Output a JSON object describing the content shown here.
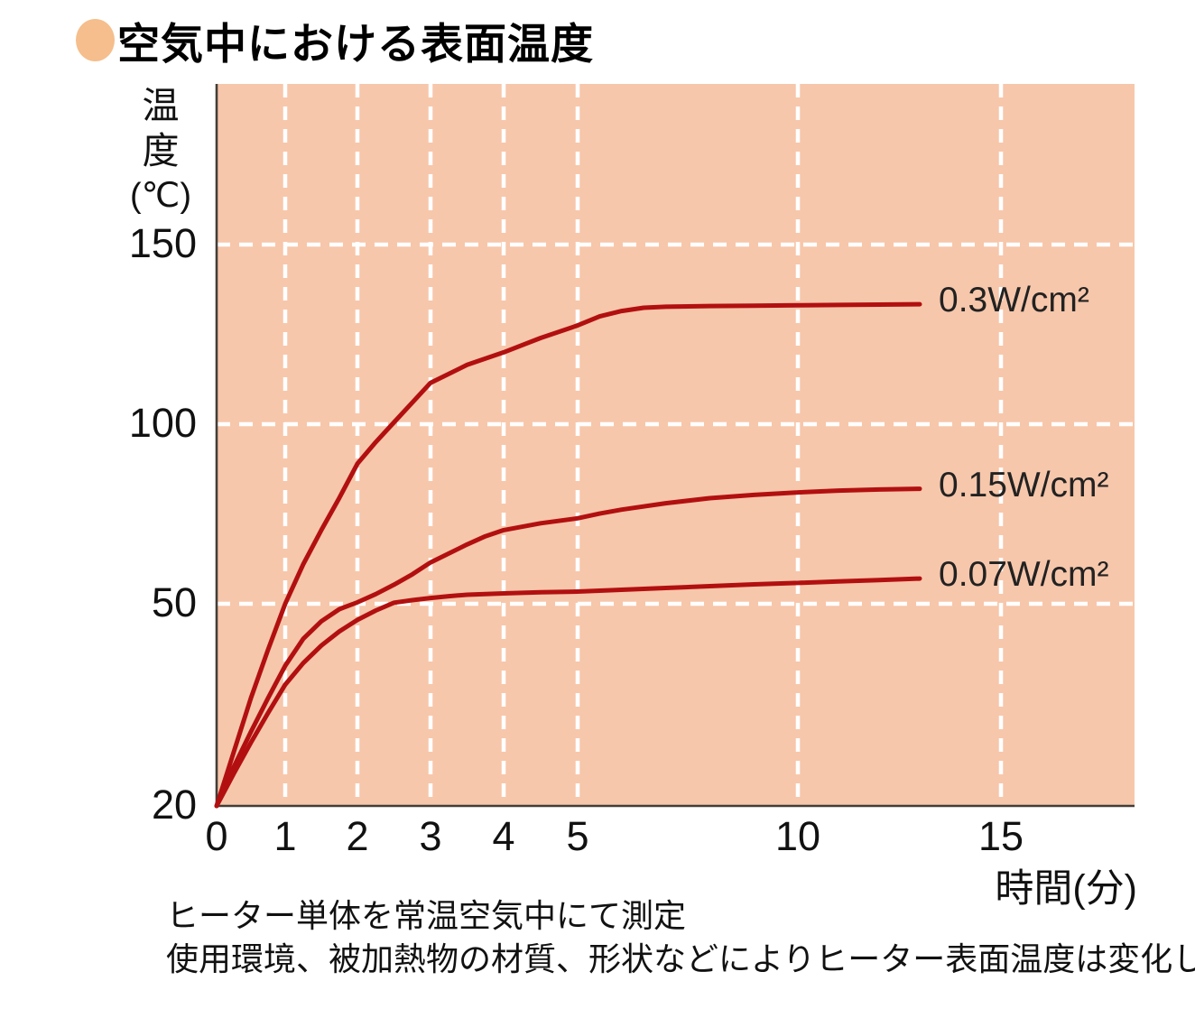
{
  "title": {
    "text": "空気中における表面温度",
    "bullet_color": "#F5BE8C"
  },
  "chart_data": {
    "type": "line",
    "title": "空気中における表面温度",
    "xlabel": "時間(分)",
    "ylabel": "温度(℃)",
    "ylabel_lines": [
      "温",
      "度",
      "(℃)"
    ],
    "x_ticks": [
      0,
      1,
      2,
      3,
      4,
      5,
      10,
      15
    ],
    "y_ticks": [
      150,
      100,
      50,
      20
    ],
    "ylim": [
      20,
      160
    ],
    "grid": "white dashed, horizontal at 50/100/150, vertical at 1/2/3/4/5/10/15",
    "plot_bg_color": "#F7C7AB",
    "grid_color": "#FFFFFF",
    "axis_color": "#433D38",
    "line_color": "#B21010",
    "series": [
      {
        "label": "0.3W/cm²",
        "points": [
          [
            0,
            20
          ],
          [
            0.25,
            28
          ],
          [
            0.5,
            36
          ],
          [
            0.75,
            43.2
          ],
          [
            1,
            50
          ],
          [
            1.25,
            61
          ],
          [
            1.5,
            70.5
          ],
          [
            1.75,
            79.5
          ],
          [
            2,
            89
          ],
          [
            2.25,
            95
          ],
          [
            2.5,
            100.5
          ],
          [
            2.75,
            106
          ],
          [
            3,
            111.5
          ],
          [
            3.25,
            114
          ],
          [
            3.5,
            116.5
          ],
          [
            4,
            120
          ],
          [
            4.5,
            124
          ],
          [
            5,
            127.5
          ],
          [
            5.5,
            130
          ],
          [
            6,
            131.5
          ],
          [
            6.5,
            132.4
          ],
          [
            7,
            132.7
          ],
          [
            8,
            132.9
          ],
          [
            9,
            133
          ],
          [
            10,
            133.1
          ],
          [
            11,
            133.2
          ],
          [
            12,
            133.3
          ],
          [
            13,
            133.4
          ]
        ]
      },
      {
        "label": "0.15W/cm²",
        "points": [
          [
            0,
            20
          ],
          [
            0.25,
            25.8
          ],
          [
            0.5,
            31
          ],
          [
            0.75,
            36
          ],
          [
            1,
            40.8
          ],
          [
            1.25,
            44.8
          ],
          [
            1.5,
            47.4
          ],
          [
            1.75,
            49.2
          ],
          [
            2,
            50.4
          ],
          [
            2.25,
            52.7
          ],
          [
            2.5,
            55.3
          ],
          [
            2.75,
            58.2
          ],
          [
            3,
            61.5
          ],
          [
            3.25,
            64
          ],
          [
            3.5,
            66.5
          ],
          [
            3.75,
            68.8
          ],
          [
            4,
            70.5
          ],
          [
            4.5,
            72.4
          ],
          [
            5,
            73.8
          ],
          [
            5.5,
            75.1
          ],
          [
            6,
            76.2
          ],
          [
            7,
            78
          ],
          [
            8,
            79.4
          ],
          [
            9,
            80.3
          ],
          [
            10,
            81
          ],
          [
            11,
            81.5
          ],
          [
            12,
            81.8
          ],
          [
            13,
            82
          ]
        ]
      },
      {
        "label": "0.07W/cm²",
        "points": [
          [
            0,
            20
          ],
          [
            0.25,
            24.8
          ],
          [
            0.5,
            29.4
          ],
          [
            0.75,
            33.8
          ],
          [
            1,
            38
          ],
          [
            1.25,
            41.2
          ],
          [
            1.5,
            43.8
          ],
          [
            1.75,
            45.9
          ],
          [
            2,
            47.6
          ],
          [
            2.25,
            49
          ],
          [
            2.5,
            50.3
          ],
          [
            2.75,
            51
          ],
          [
            3,
            51.6
          ],
          [
            3.25,
            52.1
          ],
          [
            3.5,
            52.5
          ],
          [
            4,
            52.9
          ],
          [
            4.5,
            53.2
          ],
          [
            5,
            53.4
          ],
          [
            6,
            53.9
          ],
          [
            7,
            54.4
          ],
          [
            8,
            54.9
          ],
          [
            9,
            55.4
          ],
          [
            10,
            55.8
          ],
          [
            11,
            56.2
          ],
          [
            12,
            56.6
          ],
          [
            13,
            57
          ]
        ]
      }
    ]
  },
  "footnotes": [
    "ヒーター単体を常温空気中にて測定",
    "使用環境、被加熱物の材質、形状などによりヒーター表面温度は変化します。"
  ]
}
